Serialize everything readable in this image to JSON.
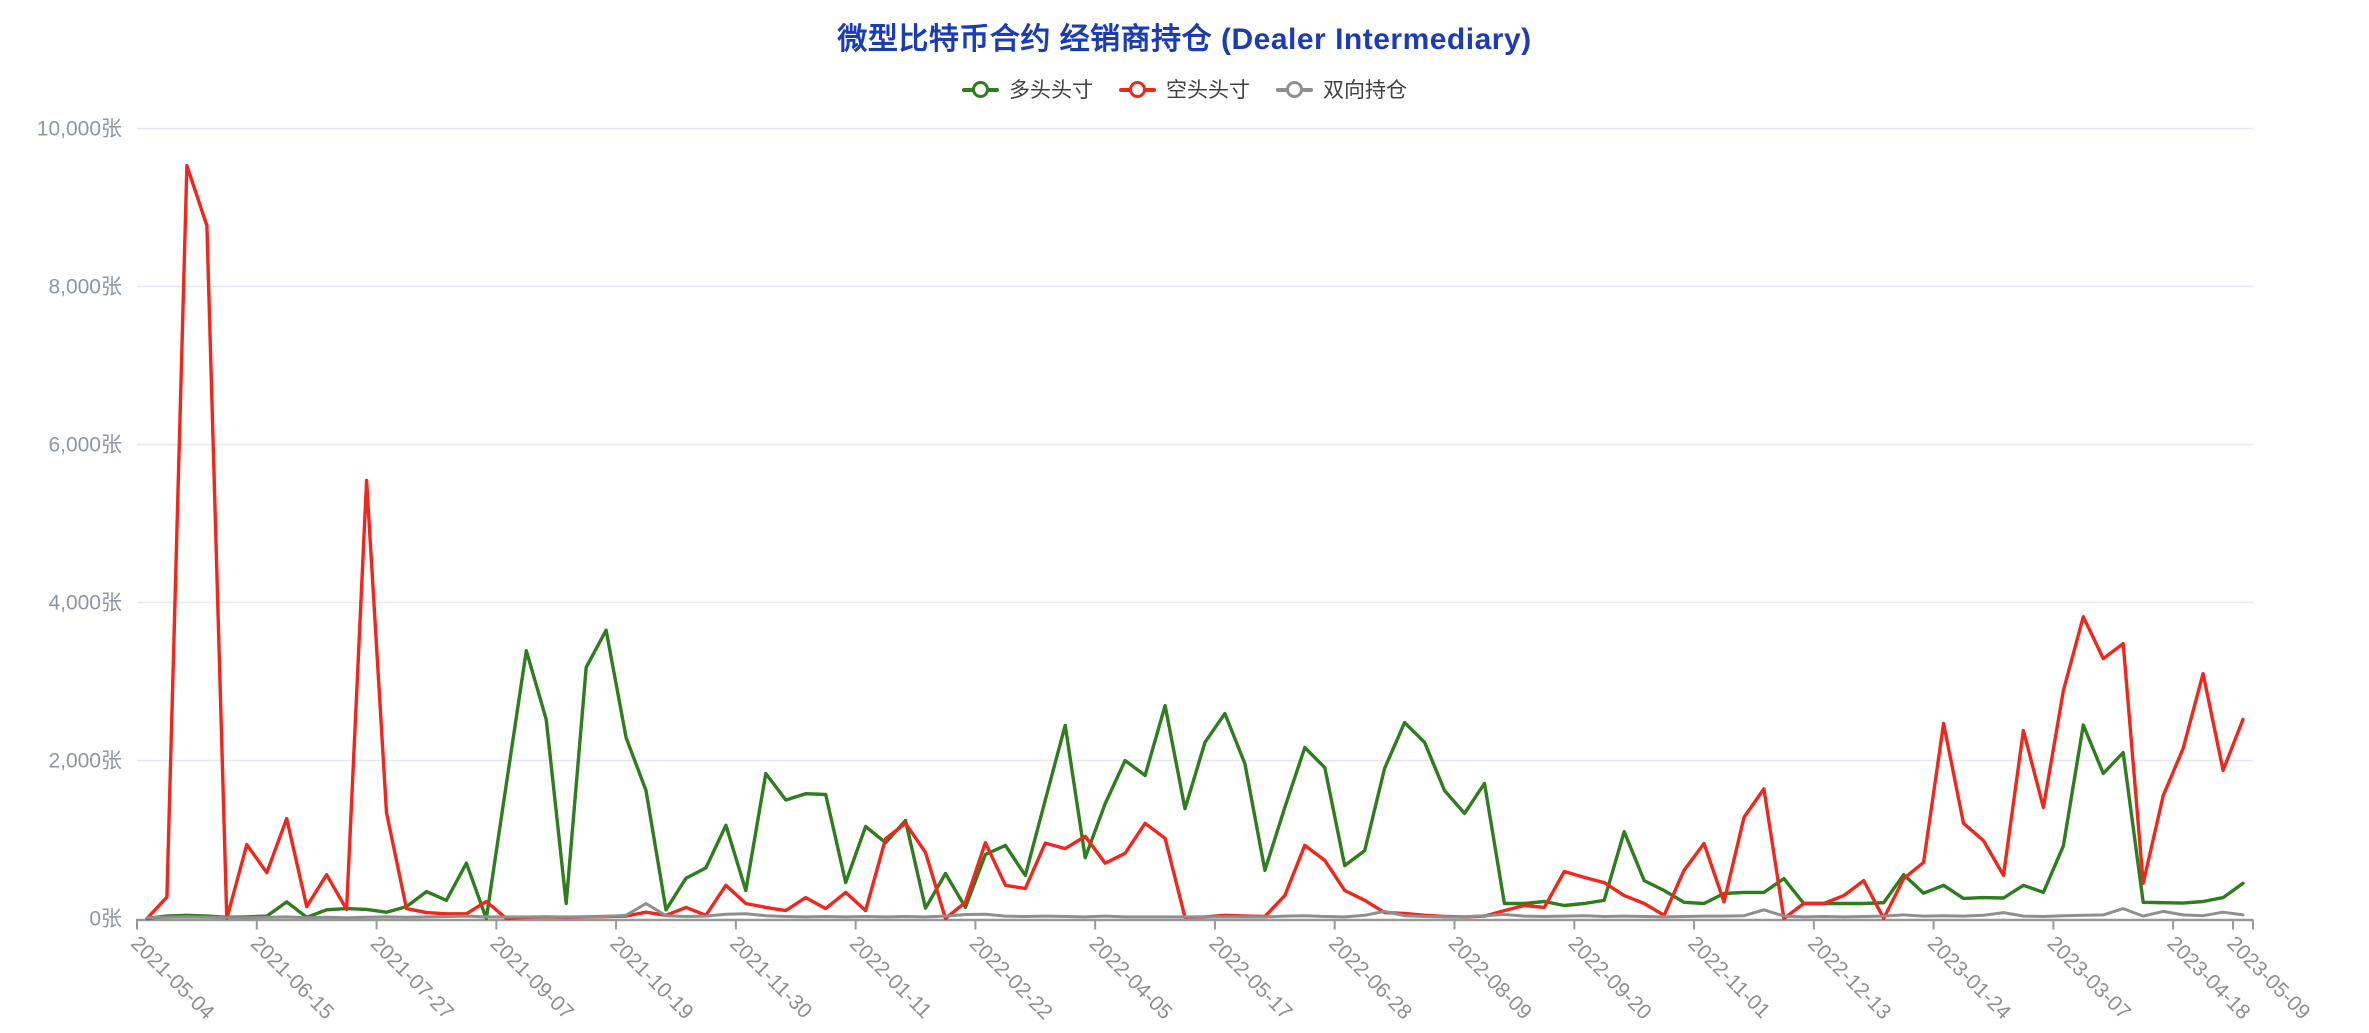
{
  "title": {
    "text": "微型比特币合约 经销商持仓 (Dealer Intermediary)"
  },
  "colors": {
    "title": "#1b3cb5",
    "long": "#2e7d1e",
    "short": "#f0271c",
    "spread": "#8f8f8f",
    "grid": "#e4e8f2",
    "axis": "#999999",
    "y_label": "#8e96a5",
    "x_label": "#8f8f8f",
    "legend_text": "#404040"
  },
  "chart_data": {
    "type": "line",
    "title": "微型比特币合约 经销商持仓 (Dealer Intermediary)",
    "y_unit": "张",
    "ylim": [
      0,
      10000
    ],
    "y_tick_step": 2000,
    "y_ticks": [
      "0张",
      "2,000张",
      "4,000张",
      "6,000张",
      "8,000张",
      "10,000张"
    ],
    "grid": "horizontal-only",
    "legend_position": "top-center",
    "x_label_indices": [
      0,
      6,
      12,
      18,
      24,
      30,
      36,
      42,
      48,
      54,
      60,
      66,
      72,
      78,
      84,
      90,
      96,
      102,
      105
    ],
    "x_tick_boundaries": [
      0,
      6,
      12,
      18,
      24,
      30,
      36,
      42,
      48,
      54,
      60,
      66,
      72,
      78,
      84,
      90,
      96,
      102,
      105,
      106
    ],
    "x_visible_labels": [
      "2021-05-04",
      "2021-06-15",
      "2021-07-27",
      "2021-09-07",
      "2021-10-19",
      "2021-11-30",
      "2022-01-11",
      "2022-02-22",
      "2022-04-05",
      "2022-05-17",
      "2022-06-28",
      "2022-08-09",
      "2022-09-20",
      "2022-11-01",
      "2022-12-13",
      "2023-01-24",
      "2023-03-07",
      "2023-04-18",
      "2023-05-09"
    ],
    "x": [
      "2021-05-04",
      "2021-05-11",
      "2021-05-18",
      "2021-05-25",
      "2021-06-01",
      "2021-06-08",
      "2021-06-15",
      "2021-06-22",
      "2021-06-29",
      "2021-07-06",
      "2021-07-13",
      "2021-07-20",
      "2021-07-27",
      "2021-08-03",
      "2021-08-10",
      "2021-08-17",
      "2021-08-24",
      "2021-08-31",
      "2021-09-07",
      "2021-09-14",
      "2021-09-21",
      "2021-09-28",
      "2021-10-05",
      "2021-10-12",
      "2021-10-19",
      "2021-10-26",
      "2021-11-02",
      "2021-11-09",
      "2021-11-16",
      "2021-11-23",
      "2021-11-30",
      "2021-12-07",
      "2021-12-14",
      "2021-12-21",
      "2021-12-28",
      "2022-01-04",
      "2022-01-11",
      "2022-01-18",
      "2022-01-25",
      "2022-02-01",
      "2022-02-08",
      "2022-02-15",
      "2022-02-22",
      "2022-03-01",
      "2022-03-08",
      "2022-03-15",
      "2022-03-22",
      "2022-03-29",
      "2022-04-05",
      "2022-04-12",
      "2022-04-19",
      "2022-04-26",
      "2022-05-03",
      "2022-05-10",
      "2022-05-17",
      "2022-05-24",
      "2022-05-31",
      "2022-06-07",
      "2022-06-14",
      "2022-06-21",
      "2022-06-28",
      "2022-07-05",
      "2022-07-12",
      "2022-07-19",
      "2022-07-26",
      "2022-08-02",
      "2022-08-09",
      "2022-08-16",
      "2022-08-23",
      "2022-08-30",
      "2022-09-06",
      "2022-09-13",
      "2022-09-20",
      "2022-09-27",
      "2022-10-04",
      "2022-10-11",
      "2022-10-18",
      "2022-10-25",
      "2022-11-01",
      "2022-11-08",
      "2022-11-15",
      "2022-11-22",
      "2022-11-29",
      "2022-12-06",
      "2022-12-13",
      "2022-12-20",
      "2022-12-27",
      "2023-01-03",
      "2023-01-10",
      "2023-01-17",
      "2023-01-24",
      "2023-01-31",
      "2023-02-07",
      "2023-02-14",
      "2023-02-21",
      "2023-02-28",
      "2023-03-07",
      "2023-03-14",
      "2023-03-21",
      "2023-03-28",
      "2023-04-04",
      "2023-04-11",
      "2023-04-18",
      "2023-04-25",
      "2023-05-02",
      "2023-05-09"
    ],
    "series": [
      {
        "key": "long",
        "name": "多头头寸",
        "color": "#2e7d1e",
        "values": [
          0,
          30,
          40,
          30,
          15,
          20,
          30,
          210,
          15,
          110,
          125,
          115,
          80,
          150,
          340,
          230,
          700,
          0,
          1700,
          3390,
          2520,
          190,
          3180,
          3650,
          2290,
          1620,
          110,
          510,
          640,
          1180,
          355,
          1835,
          1500,
          1580,
          1570,
          455,
          1165,
          960,
          1240,
          130,
          570,
          140,
          810,
          925,
          545,
          1500,
          2445,
          770,
          1455,
          2000,
          1810,
          2695,
          1390,
          2230,
          2595,
          1960,
          610,
          1405,
          2165,
          1910,
          670,
          860,
          1900,
          2480,
          2230,
          1620,
          1330,
          1710,
          190,
          190,
          215,
          165,
          190,
          230,
          1100,
          480,
          355,
          205,
          190,
          316,
          330,
          330,
          505,
          190,
          190,
          190,
          190,
          200,
          555,
          320,
          420,
          255,
          265,
          260,
          420,
          330,
          920,
          2450,
          1835,
          2100,
          205,
          200,
          195,
          215,
          265,
          445
        ]
      },
      {
        "key": "short",
        "name": "空头头寸",
        "color": "#f0271c",
        "values": [
          0,
          270,
          9530,
          8770,
          0,
          935,
          580,
          1265,
          150,
          555,
          115,
          5545,
          1340,
          125,
          75,
          60,
          60,
          215,
          0,
          15,
          20,
          15,
          20,
          25,
          30,
          80,
          40,
          140,
          40,
          420,
          190,
          140,
          100,
          265,
          125,
          330,
          100,
          1010,
          1205,
          835,
          0,
          205,
          960,
          420,
          380,
          955,
          885,
          1040,
          700,
          825,
          1205,
          1015,
          15,
          20,
          40,
          30,
          25,
          290,
          925,
          735,
          355,
          230,
          75,
          65,
          40,
          25,
          20,
          30,
          100,
          165,
          140,
          595,
          520,
          455,
          290,
          190,
          40,
          610,
          950,
          210,
          1280,
          1640,
          0,
          190,
          190,
          290,
          480,
          0,
          505,
          710,
          2470,
          1205,
          985,
          545,
          2380,
          1405,
          2885,
          3820,
          3290,
          3480,
          445,
          1555,
          2150,
          3100,
          1875,
          2520
        ]
      },
      {
        "key": "spread",
        "name": "双向持仓",
        "color": "#8f8f8f",
        "values": [
          10,
          15,
          20,
          15,
          10,
          10,
          15,
          20,
          10,
          15,
          10,
          15,
          20,
          15,
          20,
          25,
          30,
          20,
          20,
          20,
          20,
          20,
          20,
          25,
          40,
          190,
          35,
          25,
          30,
          55,
          60,
          35,
          25,
          20,
          25,
          20,
          25,
          20,
          25,
          20,
          30,
          50,
          55,
          30,
          25,
          30,
          25,
          20,
          30,
          20,
          20,
          20,
          20,
          20,
          20,
          20,
          20,
          30,
          35,
          25,
          20,
          40,
          90,
          35,
          25,
          20,
          20,
          35,
          50,
          30,
          25,
          30,
          35,
          25,
          30,
          25,
          20,
          25,
          30,
          30,
          35,
          110,
          30,
          20,
          25,
          20,
          25,
          30,
          45,
          30,
          35,
          30,
          40,
          75,
          30,
          25,
          35,
          40,
          45,
          125,
          30,
          90,
          45,
          35,
          80,
          45
        ]
      }
    ]
  }
}
